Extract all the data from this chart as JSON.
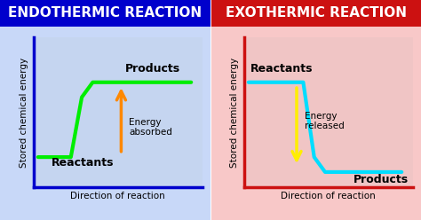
{
  "title_left": "ENDOTHERMIC REACTION",
  "title_right": "EXOTHERMIC REACTION",
  "title_bg_left": "#0000cc",
  "title_bg_right": "#cc1111",
  "title_color": "white",
  "bg_left_top": "#aabbff",
  "bg_left_bottom": "#ddeeff",
  "bg_right_top": "#ffaaaa",
  "bg_right_bottom": "#ffdddd",
  "endo_line_color": "#00ee00",
  "exo_line_color": "#00ddff",
  "endo_axis_color": "#0000cc",
  "exo_axis_color": "#cc1111",
  "arrow_endo_color": "#ff8800",
  "arrow_exo_color": "#ffee00",
  "ylabel": "Stored chemical energy",
  "xlabel": "Direction of reaction",
  "label_reactants_endo": "Reactants",
  "label_products_endo": "Products",
  "label_energy_endo": "Energy\nabsorbed",
  "label_reactants_exo": "Reactants",
  "label_products_exo": "Products",
  "label_energy_exo": "Energy\nreleased",
  "endo_x": [
    0,
    1.5,
    2.0,
    2.5,
    7.0
  ],
  "endo_y": [
    1.5,
    1.5,
    3.5,
    4.0,
    4.0
  ],
  "exo_x": [
    0,
    2.5,
    3.0,
    3.5,
    7.0
  ],
  "exo_y": [
    4.0,
    4.0,
    1.5,
    1.0,
    1.0
  ],
  "title_fontsize": 11,
  "label_fontsize": 9,
  "axis_label_fontsize": 7.5
}
